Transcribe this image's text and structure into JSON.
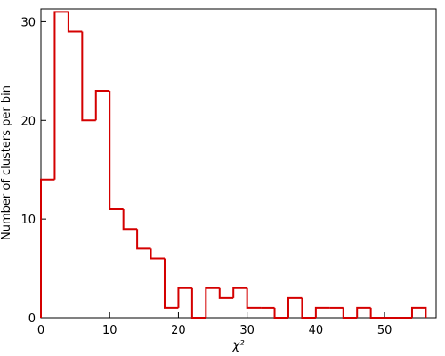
{
  "chart_data": {
    "type": "histogram",
    "xlabel": "χ²",
    "ylabel": "Number of clusters per bin",
    "bins": [
      0,
      2,
      4,
      6,
      8,
      10,
      12,
      14,
      16,
      18,
      20,
      22,
      24,
      26,
      28,
      30,
      32,
      34,
      36,
      38,
      40,
      42,
      44,
      46,
      48,
      50,
      52,
      54,
      56
    ],
    "values": [
      14,
      31,
      29,
      20,
      23,
      11,
      9,
      7,
      6,
      1,
      3,
      0,
      3,
      2,
      3,
      1,
      1,
      0,
      2,
      0,
      1,
      1,
      0,
      1,
      0,
      0,
      0,
      1
    ],
    "color": "#d40000",
    "xlim": [
      0,
      57.5
    ],
    "ylim": [
      0,
      31.3
    ],
    "xticks": [
      0,
      10,
      20,
      30,
      40,
      50
    ],
    "yticks": [
      0,
      10,
      20,
      30
    ]
  }
}
